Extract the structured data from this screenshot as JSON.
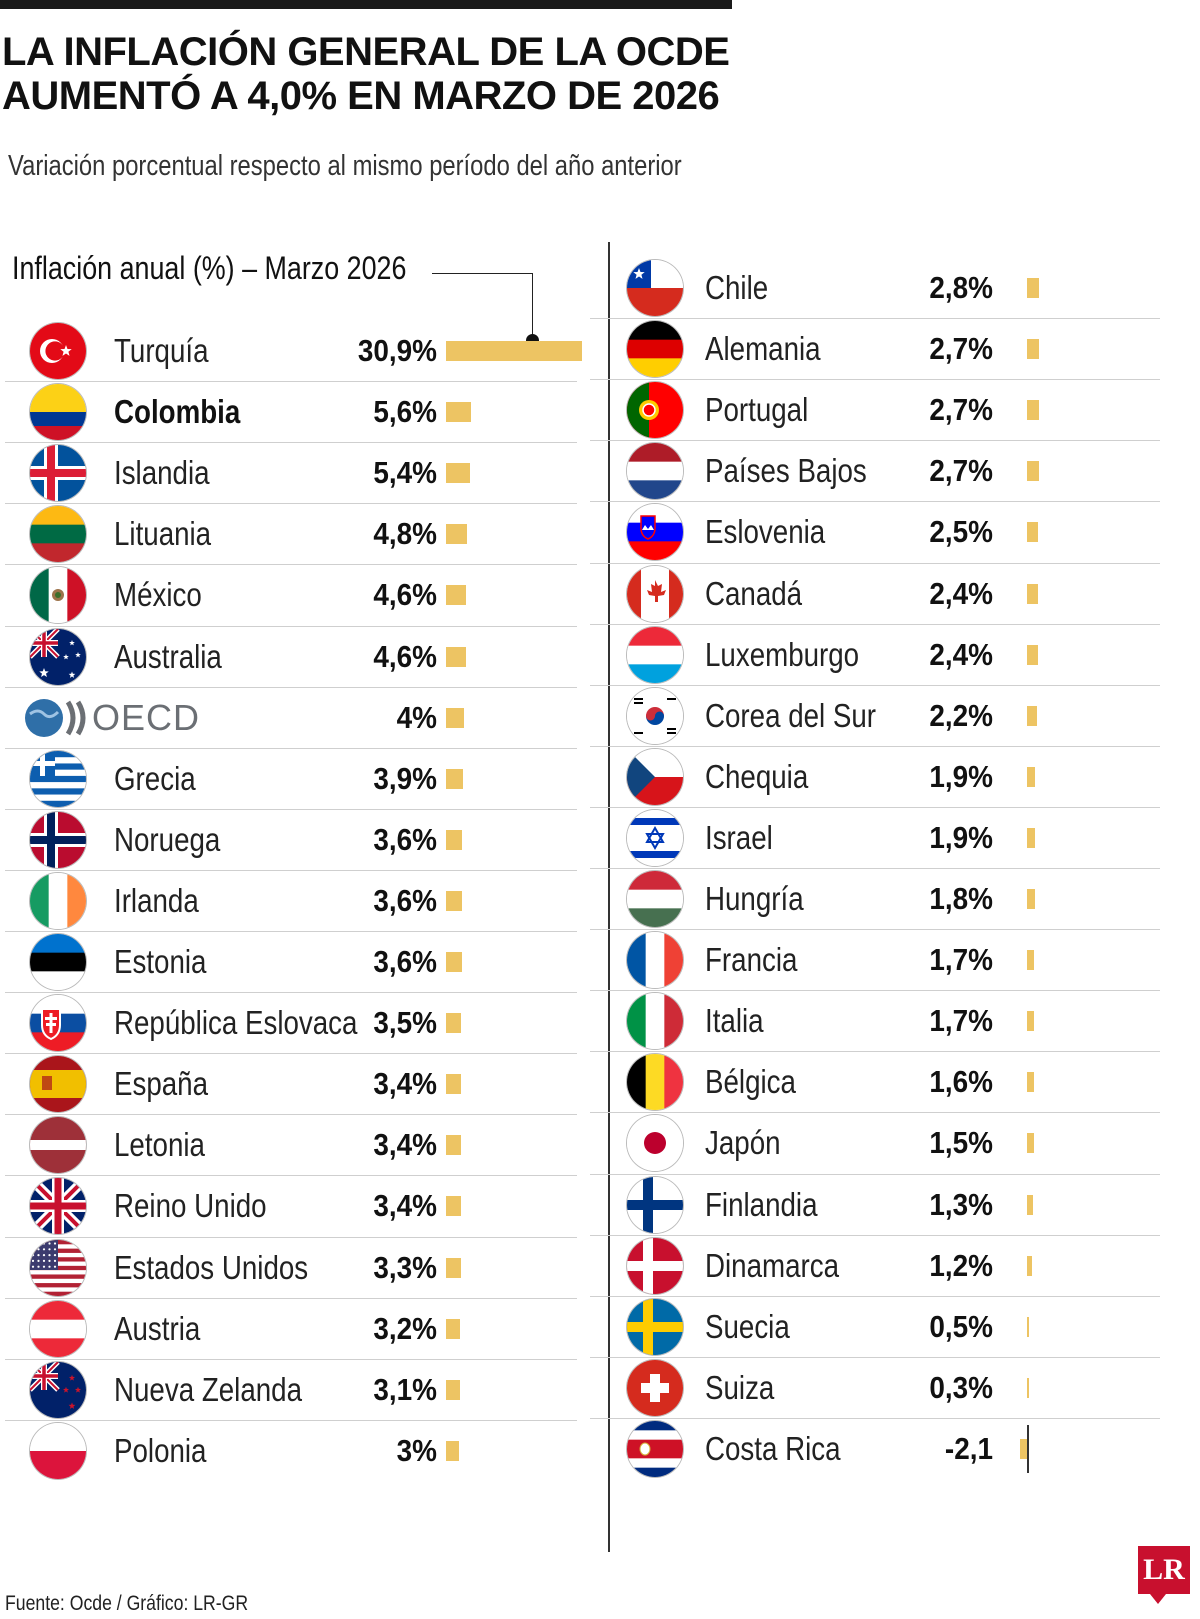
{
  "header": {
    "title": "LA INFLACIÓN GENERAL DE LA OCDE AUMENTÓ A 4,0% EN MARZO DE 2026",
    "subtitle": "Variación porcentual respecto al mismo período del año anterior",
    "panel_label": "Inflación anual (%) – Marzo 2026"
  },
  "footer": {
    "source": "Fuente: Ocde / Gráfico: LR-GR",
    "logo": "LR"
  },
  "colors": {
    "bar": "#edc463",
    "text": "#1a1a1a",
    "logo": "#c8102e",
    "oecd_grey": "#6b6f74"
  },
  "chart_data": {
    "type": "bar",
    "orientation": "horizontal",
    "title": "LA INFLACIÓN GENERAL DE LA OCDE AUMENTÓ A 4,0% EN MARZO DE 2026",
    "subtitle": "Variación porcentual respecto al mismo período del año anterior",
    "xlabel": "Inflación anual (%) – Marzo 2026",
    "ylabel": "",
    "grid": false,
    "highlight": "Colombia",
    "columns": [
      [
        {
          "country": "Turquía",
          "flag": "turkey-flag-icon",
          "value": 30.9,
          "label": "30,9%"
        },
        {
          "country": "Colombia",
          "flag": "colombia-flag-icon",
          "value": 5.6,
          "label": "5,6%"
        },
        {
          "country": "Islandia",
          "flag": "iceland-flag-icon",
          "value": 5.4,
          "label": "5,4%"
        },
        {
          "country": "Lituania",
          "flag": "lithuania-flag-icon",
          "value": 4.8,
          "label": "4,8%"
        },
        {
          "country": "México",
          "flag": "mexico-flag-icon",
          "value": 4.6,
          "label": "4,6%"
        },
        {
          "country": "Australia",
          "flag": "australia-flag-icon",
          "value": 4.6,
          "label": "4,6%"
        },
        {
          "country": "OECD",
          "flag": "oecd-logo-icon",
          "value": 4.0,
          "label": "4%"
        },
        {
          "country": "Grecia",
          "flag": "greece-flag-icon",
          "value": 3.9,
          "label": "3,9%"
        },
        {
          "country": "Noruega",
          "flag": "norway-flag-icon",
          "value": 3.6,
          "label": "3,6%"
        },
        {
          "country": "Irlanda",
          "flag": "ireland-flag-icon",
          "value": 3.6,
          "label": "3,6%"
        },
        {
          "country": "Estonia",
          "flag": "estonia-flag-icon",
          "value": 3.6,
          "label": "3,6%"
        },
        {
          "country": "República Eslovaca",
          "flag": "slovakia-flag-icon",
          "value": 3.5,
          "label": "3,5%"
        },
        {
          "country": "España",
          "flag": "spain-flag-icon",
          "value": 3.4,
          "label": "3,4%"
        },
        {
          "country": "Letonia",
          "flag": "latvia-flag-icon",
          "value": 3.4,
          "label": "3,4%"
        },
        {
          "country": "Reino Unido",
          "flag": "uk-flag-icon",
          "value": 3.4,
          "label": "3,4%"
        },
        {
          "country": "Estados Unidos",
          "flag": "usa-flag-icon",
          "value": 3.3,
          "label": "3,3%"
        },
        {
          "country": "Austria",
          "flag": "austria-flag-icon",
          "value": 3.2,
          "label": "3,2%"
        },
        {
          "country": "Nueva Zelanda",
          "flag": "new-zealand-flag-icon",
          "value": 3.1,
          "label": "3,1%"
        },
        {
          "country": "Polonia",
          "flag": "poland-flag-icon",
          "value": 3.0,
          "label": "3%"
        }
      ],
      [
        {
          "country": "Chile",
          "flag": "chile-flag-icon",
          "value": 2.8,
          "label": "2,8%"
        },
        {
          "country": "Alemania",
          "flag": "germany-flag-icon",
          "value": 2.7,
          "label": "2,7%"
        },
        {
          "country": "Portugal",
          "flag": "portugal-flag-icon",
          "value": 2.7,
          "label": "2,7%"
        },
        {
          "country": "Países Bajos",
          "flag": "netherlands-flag-icon",
          "value": 2.7,
          "label": "2,7%"
        },
        {
          "country": "Eslovenia",
          "flag": "slovenia-flag-icon",
          "value": 2.5,
          "label": "2,5%"
        },
        {
          "country": "Canadá",
          "flag": "canada-flag-icon",
          "value": 2.4,
          "label": "2,4%"
        },
        {
          "country": "Luxemburgo",
          "flag": "luxembourg-flag-icon",
          "value": 2.4,
          "label": "2,4%"
        },
        {
          "country": "Corea del Sur",
          "flag": "south-korea-flag-icon",
          "value": 2.2,
          "label": "2,2%"
        },
        {
          "country": "Chequia",
          "flag": "czechia-flag-icon",
          "value": 1.9,
          "label": "1,9%"
        },
        {
          "country": "Israel",
          "flag": "israel-flag-icon",
          "value": 1.9,
          "label": "1,9%"
        },
        {
          "country": "Hungría",
          "flag": "hungary-flag-icon",
          "value": 1.8,
          "label": "1,8%"
        },
        {
          "country": "Francia",
          "flag": "france-flag-icon",
          "value": 1.7,
          "label": "1,7%"
        },
        {
          "country": "Italia",
          "flag": "italy-flag-icon",
          "value": 1.7,
          "label": "1,7%"
        },
        {
          "country": "Bélgica",
          "flag": "belgium-flag-icon",
          "value": 1.6,
          "label": "1,6%"
        },
        {
          "country": "Japón",
          "flag": "japan-flag-icon",
          "value": 1.5,
          "label": "1,5%"
        },
        {
          "country": "Finlandia",
          "flag": "finland-flag-icon",
          "value": 1.3,
          "label": "1,3%"
        },
        {
          "country": "Dinamarca",
          "flag": "denmark-flag-icon",
          "value": 1.2,
          "label": "1,2%"
        },
        {
          "country": "Suecia",
          "flag": "sweden-flag-icon",
          "value": 0.5,
          "label": "0,5%"
        },
        {
          "country": "Suiza",
          "flag": "switzerland-flag-icon",
          "value": 0.3,
          "label": "0,3%"
        },
        {
          "country": "Costa Rica",
          "flag": "costa-rica-flag-icon",
          "value": -2.1,
          "label": "-2,1"
        }
      ]
    ]
  }
}
